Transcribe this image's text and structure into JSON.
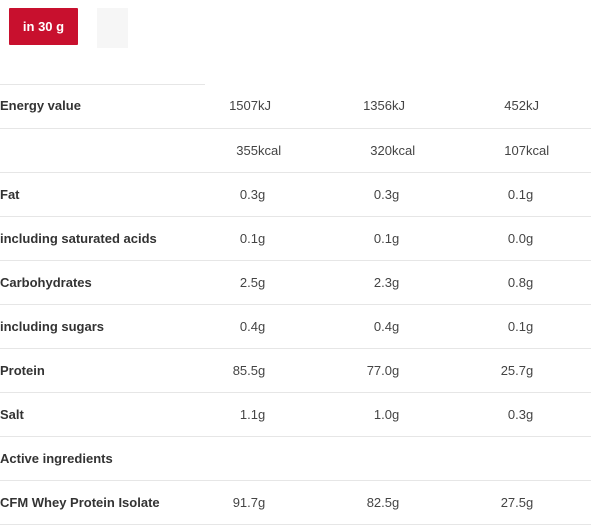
{
  "tabs": [
    {
      "label": "in 30 g"
    },
    {
      "label": ""
    }
  ],
  "rows": [
    {
      "label": "Energy value",
      "v1": "1507",
      "u1": "kJ",
      "v2": "1356",
      "u2": "kJ",
      "v3": "452",
      "u3": "kJ"
    },
    {
      "label": "",
      "v1": "355",
      "u1": "kcal",
      "v2": "320",
      "u2": "kcal",
      "v3": "107",
      "u3": "kcal"
    },
    {
      "label": "Fat",
      "v1": "0.3",
      "u1": "g",
      "v2": "0.3",
      "u2": "g",
      "v3": "0.1",
      "u3": "g"
    },
    {
      "label": "including saturated acids",
      "v1": "0.1",
      "u1": "g",
      "v2": "0.1",
      "u2": "g",
      "v3": "0.0",
      "u3": "g"
    },
    {
      "label": "Carbohydrates",
      "v1": "2.5",
      "u1": "g",
      "v2": "2.3",
      "u2": "g",
      "v3": "0.8",
      "u3": "g"
    },
    {
      "label": "including sugars",
      "v1": "0.4",
      "u1": "g",
      "v2": "0.4",
      "u2": "g",
      "v3": "0.1",
      "u3": "g"
    },
    {
      "label": "Protein",
      "v1": "85.5",
      "u1": "g",
      "v2": "77.0",
      "u2": "g",
      "v3": "25.7",
      "u3": "g"
    },
    {
      "label": "Salt",
      "v1": "1.1",
      "u1": "g",
      "v2": "1.0",
      "u2": "g",
      "v3": "0.3",
      "u3": "g"
    },
    {
      "label": "Active ingredients",
      "v1": "",
      "u1": "",
      "v2": "",
      "u2": "",
      "v3": "",
      "u3": ""
    },
    {
      "label": "CFM Whey Protein Isolate",
      "v1": "91.7",
      "u1": "g",
      "v2": "82.5",
      "u2": "g",
      "v3": "27.5",
      "u3": "g"
    }
  ],
  "colors": {
    "accent": "#c8102e",
    "rule": "#e6e6e6"
  }
}
